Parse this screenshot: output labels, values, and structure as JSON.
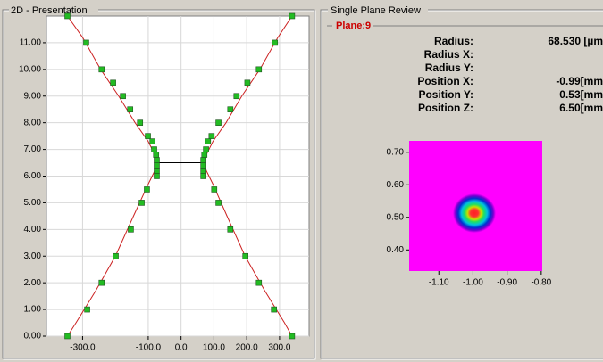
{
  "left_panel": {
    "title": "2D - Presentation"
  },
  "right_panel": {
    "title": "Single Plane Review",
    "plane": "Plane:9",
    "fields": [
      {
        "label": "Radius:",
        "value": "68.530 [µm"
      },
      {
        "label": "Radius X:"
      },
      {
        "label": "Radius Y:"
      },
      {
        "label": "Position X:",
        "value": "-0.99[mm"
      },
      {
        "label": "Position Y:",
        "value": "0.53[mm"
      },
      {
        "label": "Position Z:",
        "value": "6.50[mm"
      }
    ]
  },
  "chart_data": [
    {
      "type": "scatter",
      "grid": true,
      "xlim": [
        -410,
        390
      ],
      "ylim": [
        0,
        12
      ],
      "xticks": [
        {
          "value": -300,
          "label": "-300.0"
        },
        {
          "value": -100,
          "label": "-100.0"
        },
        {
          "value": 0,
          "label": "0.0"
        },
        {
          "value": 100,
          "label": "100.0"
        },
        {
          "value": 200,
          "label": "200.0"
        },
        {
          "value": 300,
          "label": "300.0"
        }
      ],
      "yticks": [
        {
          "value": 0,
          "label": "0.00"
        },
        {
          "value": 1,
          "label": "1.00"
        },
        {
          "value": 2,
          "label": "2.00"
        },
        {
          "value": 3,
          "label": "3.00"
        },
        {
          "value": 4,
          "label": "4.00"
        },
        {
          "value": 5,
          "label": "5.00"
        },
        {
          "value": 6,
          "label": "6.00"
        },
        {
          "value": 7,
          "label": "7.00"
        },
        {
          "value": 8,
          "label": "8.00"
        },
        {
          "value": 9,
          "label": "9.00"
        },
        {
          "value": 10,
          "label": "10.00"
        },
        {
          "value": 11,
          "label": "11.00"
        }
      ],
      "series": [
        {
          "color": "#22bb22",
          "x": [
            -346,
            -289,
            -242,
            -207,
            -177,
            -155,
            -125,
            -101,
            -87,
            -82,
            -76,
            -74,
            -74,
            -74,
            -74,
            -104,
            -120,
            -153,
            -199,
            -242,
            -286,
            -346
          ],
          "values": [
            12,
            11,
            10,
            9.5,
            9,
            8.5,
            8,
            7.5,
            7.3,
            7.0,
            6.8,
            6.6,
            6.4,
            6.2,
            6.0,
            5.5,
            5.0,
            4.0,
            3.0,
            2.0,
            1.0,
            0
          ]
        },
        {
          "color": "#22bb22",
          "x": [
            338,
            286,
            237,
            202,
            169,
            150,
            114,
            93,
            82,
            76,
            71,
            68,
            68,
            68,
            68,
            101,
            114,
            150,
            196,
            237,
            283,
            338
          ],
          "values": [
            12,
            11,
            10,
            9.5,
            9,
            8.5,
            8,
            7.5,
            7.3,
            7.0,
            6.8,
            6.6,
            6.4,
            6.2,
            6.0,
            5.5,
            5.0,
            4.0,
            3.0,
            2.0,
            1.0,
            0
          ]
        }
      ],
      "fits": [
        {
          "color": "#cc2222",
          "x": [
            -346,
            -300,
            -245,
            -190,
            -140,
            -100,
            -80,
            -74,
            -80,
            -100,
            -145,
            -200,
            -260,
            -320,
            -346
          ],
          "values": [
            12,
            11.2,
            10,
            9,
            8,
            7.3,
            6.8,
            6.5,
            6.2,
            5.7,
            4.5,
            3,
            1.7,
            0.5,
            0
          ]
        },
        {
          "color": "#cc2222",
          "x": [
            338,
            295,
            240,
            185,
            137,
            97,
            77,
            70,
            77,
            97,
            140,
            195,
            255,
            315,
            338
          ],
          "values": [
            12,
            11.2,
            10,
            9,
            8,
            7.3,
            6.8,
            6.5,
            6.2,
            5.7,
            4.5,
            3,
            1.7,
            0.5,
            0
          ]
        }
      ],
      "waist": {
        "color": "#000000",
        "x": [
          -74,
          68
        ],
        "values": [
          6.5,
          6.5
        ]
      }
    },
    {
      "type": "heatmap",
      "xlim": [
        -1.187,
        -0.797
      ],
      "ylim": [
        0.335,
        0.735
      ],
      "xticks": [
        {
          "value": -1.1,
          "label": "-1.10"
        },
        {
          "value": -1.0,
          "label": "-1.00"
        },
        {
          "value": -0.9,
          "label": "-0.90"
        },
        {
          "value": -0.8,
          "label": "-0.80"
        }
      ],
      "yticks": [
        {
          "value": 0.7,
          "label": "0.70"
        },
        {
          "value": 0.6,
          "label": "0.60"
        },
        {
          "value": 0.5,
          "label": "0.50"
        },
        {
          "value": 0.4,
          "label": "0.40"
        }
      ]
    }
  ]
}
